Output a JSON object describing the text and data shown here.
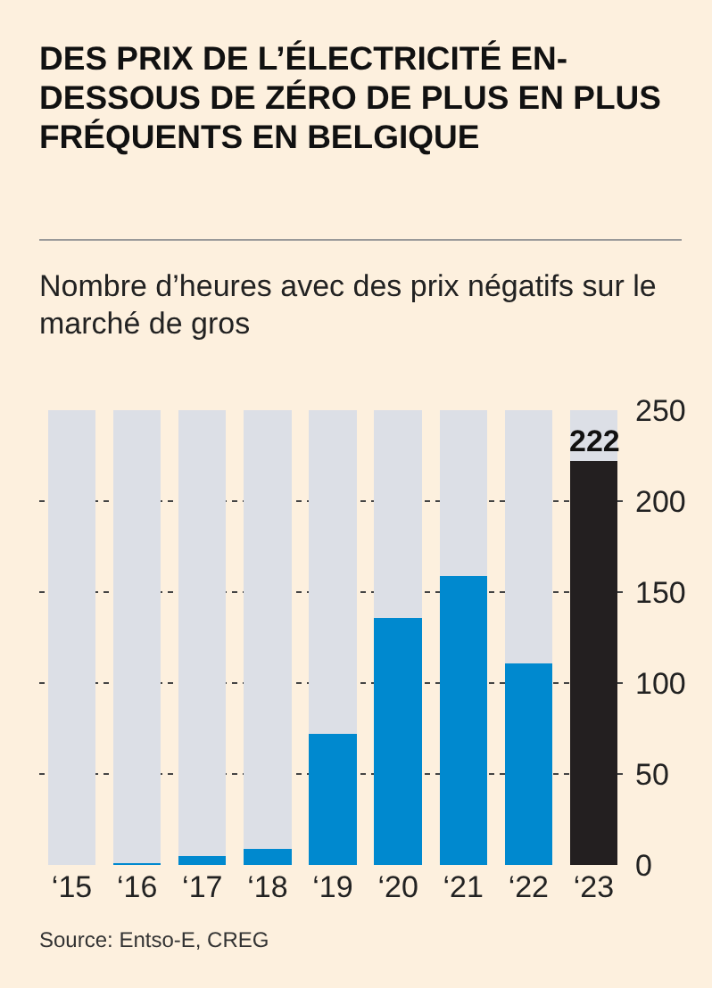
{
  "chart_data": {
    "type": "bar",
    "title": "DES PRIX DE L’ÉLECTRICITÉ EN-DESSOUS DE ZÉRO DE PLUS EN PLUS FRÉQUENTS EN BELGIQUE",
    "subtitle": "Nombre d’heures avec des prix négatifs sur le marché de gros",
    "categories": [
      "‘15",
      "‘16",
      "‘17",
      "‘18",
      "‘19",
      "‘20",
      "‘21",
      "‘22",
      "‘23"
    ],
    "series": [
      {
        "colors": [
          "#0089cf",
          "#0089cf",
          "#0089cf",
          "#0089cf",
          "#0089cf",
          "#0089cf",
          "#0089cf",
          "#0089cf",
          "#231f20"
        ],
        "values": [
          0,
          1,
          5,
          9,
          72,
          136,
          159,
          111,
          222
        ],
        "value_labels": [
          null,
          null,
          null,
          null,
          null,
          null,
          null,
          null,
          "222"
        ]
      },
      {
        "color": "#dcdfe6",
        "values": [
          250,
          249,
          245,
          241,
          178,
          114,
          91,
          139,
          28
        ]
      }
    ],
    "stacked": true,
    "ylim": [
      0,
      250
    ],
    "yticks": [
      0,
      50,
      100,
      150,
      200,
      250
    ],
    "grid": "y",
    "legend": false,
    "annotations": [
      "Source: Entso-E, CREG"
    ]
  }
}
